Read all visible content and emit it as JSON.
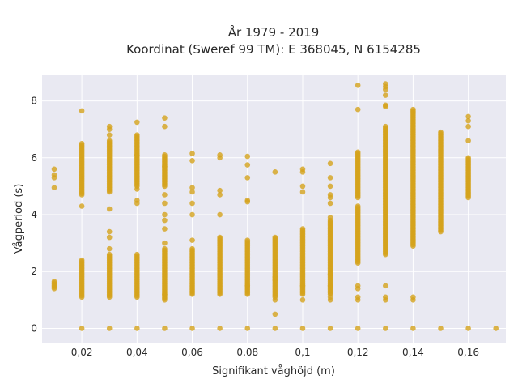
{
  "chart_data": {
    "type": "scatter",
    "title_lines": [
      "År 1979 - 2019",
      "Koordinat (Sweref 99 TM): E 368045, N 6154285"
    ],
    "xlabel": "Signifikant våghöjd (m)",
    "ylabel": "Vågperiod (s)",
    "xlim": [
      0.0056,
      0.1736
    ],
    "ylim": [
      -0.5,
      8.9
    ],
    "x_ticks": [
      {
        "value": 0.02,
        "label": "0,02"
      },
      {
        "value": 0.04,
        "label": "0,04"
      },
      {
        "value": 0.06,
        "label": "0,06"
      },
      {
        "value": 0.08,
        "label": "0,08"
      },
      {
        "value": 0.1,
        "label": "0,1"
      },
      {
        "value": 0.12,
        "label": "0,12"
      },
      {
        "value": 0.14,
        "label": "0,14"
      },
      {
        "value": 0.16,
        "label": "0,16"
      }
    ],
    "y_ticks": [
      {
        "value": 0,
        "label": "0"
      },
      {
        "value": 2,
        "label": "2"
      },
      {
        "value": 4,
        "label": "4"
      },
      {
        "value": 6,
        "label": "6"
      },
      {
        "value": 8,
        "label": "8"
      }
    ],
    "grid": true,
    "marker_color": "#d4a21b",
    "background_color": "#e9e9f2",
    "series": [
      {
        "columns": [
          {
            "x": 0.01,
            "ranges": [
              [
                1.4,
                1.65
              ]
            ],
            "points": [
              4.95,
              5.3,
              5.4,
              5.6
            ]
          },
          {
            "x": 0.02,
            "ranges": [
              [
                1.1,
                2.4
              ],
              [
                4.7,
                6.5
              ]
            ],
            "points": [
              0,
              4.3,
              7.65
            ]
          },
          {
            "x": 0.03,
            "ranges": [
              [
                1.1,
                2.6
              ],
              [
                4.8,
                6.6
              ]
            ],
            "points": [
              0,
              3.2,
              3.4,
              4.2,
              2.8,
              6.8,
              7.0,
              7.1
            ]
          },
          {
            "x": 0.04,
            "ranges": [
              [
                1.1,
                2.6
              ],
              [
                5.0,
                6.8
              ]
            ],
            "points": [
              0,
              4.4,
              4.5,
              4.9,
              7.25,
              6.1
            ]
          },
          {
            "x": 0.05,
            "ranges": [
              [
                1.0,
                2.8
              ],
              [
                5.0,
                6.1
              ]
            ],
            "points": [
              0,
              3.0,
              3.5,
              3.8,
              4.0,
              4.4,
              4.7,
              5.7,
              7.1,
              7.4,
              1.2
            ]
          },
          {
            "x": 0.06,
            "ranges": [
              [
                1.2,
                2.8
              ]
            ],
            "points": [
              0,
              3.1,
              4.0,
              4.4,
              4.8,
              4.95,
              5.9,
              6.15
            ]
          },
          {
            "x": 0.07,
            "ranges": [
              [
                1.2,
                3.2
              ]
            ],
            "points": [
              0,
              4.0,
              4.7,
              4.85,
              6.0,
              6.1
            ]
          },
          {
            "x": 0.08,
            "ranges": [
              [
                1.2,
                3.1
              ]
            ],
            "points": [
              0,
              1.5,
              4.45,
              4.5,
              5.3,
              5.75,
              6.05
            ]
          },
          {
            "x": 0.09,
            "ranges": [
              [
                1.1,
                3.2
              ]
            ],
            "points": [
              0,
              0.5,
              1.7,
              1.8,
              1.0,
              5.5
            ]
          },
          {
            "x": 0.1,
            "ranges": [
              [
                1.2,
                3.5
              ]
            ],
            "points": [
              0,
              1.0,
              1.5,
              4.8,
              5.0,
              5.5,
              5.6
            ]
          },
          {
            "x": 0.11,
            "ranges": [
              [
                1.2,
                3.8
              ]
            ],
            "points": [
              0,
              1.0,
              1.1,
              1.5,
              1.9,
              3.9,
              4.4,
              4.6,
              4.7,
              5.0,
              5.3,
              5.8
            ]
          },
          {
            "x": 0.12,
            "ranges": [
              [
                2.3,
                4.3
              ],
              [
                4.6,
                6.2
              ]
            ],
            "points": [
              0,
              1.0,
              1.1,
              1.4,
              1.5,
              7.7,
              8.55
            ]
          },
          {
            "x": 0.13,
            "ranges": [
              [
                2.6,
                7.1
              ]
            ],
            "points": [
              0,
              1.0,
              1.1,
              1.5,
              7.8,
              7.85,
              8.2,
              8.4,
              8.5,
              8.6
            ]
          },
          {
            "x": 0.14,
            "ranges": [
              [
                2.9,
                7.7
              ]
            ],
            "points": [
              0,
              1.0,
              1.1
            ]
          },
          {
            "x": 0.15,
            "ranges": [
              [
                3.4,
                6.9
              ]
            ],
            "points": [
              0
            ]
          },
          {
            "x": 0.16,
            "ranges": [
              [
                4.6,
                6.0
              ]
            ],
            "points": [
              0,
              6.6,
              7.1,
              7.3,
              7.45
            ]
          },
          {
            "x": 0.17,
            "ranges": [],
            "points": [
              0
            ]
          }
        ]
      }
    ]
  }
}
